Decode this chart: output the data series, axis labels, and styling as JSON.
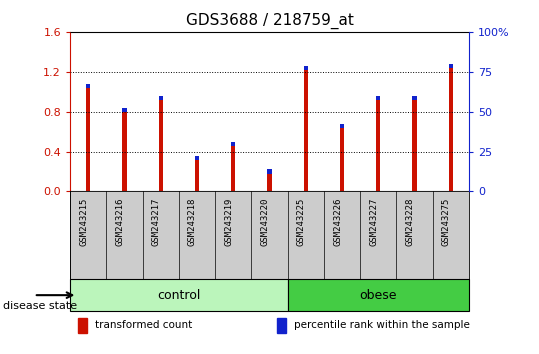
{
  "title": "GDS3688 / 218759_at",
  "samples": [
    "GSM243215",
    "GSM243216",
    "GSM243217",
    "GSM243218",
    "GSM243219",
    "GSM243220",
    "GSM243225",
    "GSM243226",
    "GSM243227",
    "GSM243228",
    "GSM243275"
  ],
  "transformed_count": [
    1.08,
    0.84,
    0.96,
    0.36,
    0.5,
    0.22,
    1.26,
    0.68,
    0.96,
    0.96,
    1.28
  ],
  "percentile_rank_left": [
    0.96,
    0.72,
    0.96,
    0.28,
    0.4,
    0.18,
    1.2,
    0.56,
    0.84,
    0.84,
    1.2
  ],
  "control_range": [
    0,
    5
  ],
  "obese_range": [
    6,
    10
  ],
  "ylim_left": [
    0,
    1.6
  ],
  "ylim_right": [
    0,
    100
  ],
  "yticks_left": [
    0,
    0.4,
    0.8,
    1.2,
    1.6
  ],
  "yticks_right": [
    0,
    25,
    50,
    75,
    100
  ],
  "ytick_labels_right": [
    "0",
    "25",
    "50",
    "75",
    "100%"
  ],
  "bar_width": 0.12,
  "red_color": "#cc1100",
  "blue_color": "#1122cc",
  "sample_bg_color": "#cccccc",
  "control_color": "#bbf5bb",
  "obese_color": "#44cc44",
  "group_labels": [
    "control",
    "obese"
  ],
  "disease_state_label": "disease state",
  "legend_labels": [
    "transformed count",
    "percentile rank within the sample"
  ],
  "legend_colors": [
    "#cc1100",
    "#1122cc"
  ],
  "left_axis_color": "#cc1100",
  "right_axis_color": "#1122cc"
}
